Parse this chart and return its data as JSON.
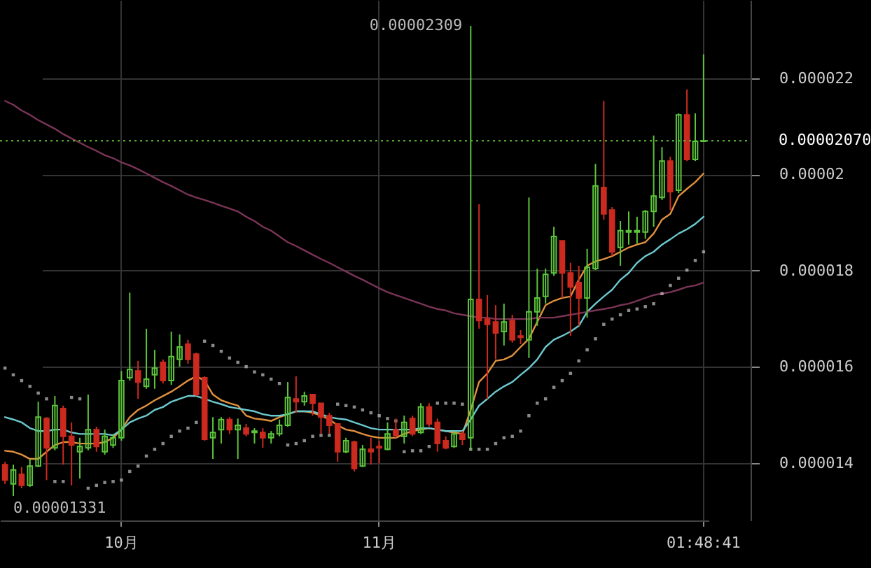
{
  "chart_data": {
    "type": "candlestick",
    "categories": [
      null,
      null,
      null,
      null,
      null,
      null,
      null,
      null,
      null,
      null,
      null,
      null,
      null,
      null,
      "10月",
      null,
      null,
      null,
      null,
      null,
      null,
      null,
      null,
      null,
      null,
      null,
      null,
      null,
      null,
      null,
      null,
      null,
      null,
      null,
      null,
      null,
      null,
      null,
      null,
      null,
      null,
      null,
      null,
      null,
      null,
      "11月",
      null,
      null,
      null,
      null,
      null,
      null,
      null,
      null,
      null,
      null,
      null,
      null,
      null,
      null,
      null,
      null,
      null,
      null,
      null,
      null,
      null,
      null,
      null,
      null,
      null,
      null,
      null,
      null,
      null,
      null,
      null,
      null,
      null,
      null,
      null,
      null,
      null,
      null,
      "01:48:41"
    ],
    "ohlc": [
      [
        1.396e-05,
        1.402e-05,
        1.356e-05,
        1.364e-05
      ],
      [
        1.356e-05,
        1.396e-05,
        1.331e-05,
        1.385e-05
      ],
      [
        1.376e-05,
        1.391e-05,
        1.347e-05,
        1.353e-05
      ],
      [
        1.353e-05,
        1.408e-05,
        1.35e-05,
        1.393e-05
      ],
      [
        1.393e-05,
        1.527e-05,
        1.391e-05,
        1.495e-05
      ],
      [
        1.492e-05,
        1.495e-05,
        1.364e-05,
        1.431e-05
      ],
      [
        1.431e-05,
        1.539e-05,
        1.426e-05,
        1.519e-05
      ],
      [
        1.513e-05,
        1.519e-05,
        1.396e-05,
        1.455e-05
      ],
      [
        1.455e-05,
        1.484e-05,
        1.353e-05,
        1.437e-05
      ],
      [
        1.423e-05,
        1.452e-05,
        1.367e-05,
        1.434e-05
      ],
      [
        1.431e-05,
        1.542e-05,
        1.426e-05,
        1.469e-05
      ],
      [
        1.469e-05,
        1.475e-05,
        1.423e-05,
        1.434e-05
      ],
      [
        1.423e-05,
        1.469e-05,
        1.417e-05,
        1.455e-05
      ],
      [
        1.437e-05,
        1.46e-05,
        1.431e-05,
        1.452e-05
      ],
      [
        1.452e-05,
        1.591e-05,
        1.446e-05,
        1.571e-05
      ],
      [
        1.577e-05,
        1.754e-05,
        1.571e-05,
        1.594e-05
      ],
      [
        1.591e-05,
        1.612e-05,
        1.533e-05,
        1.568e-05
      ],
      [
        1.559e-05,
        1.679e-05,
        1.554e-05,
        1.574e-05
      ],
      [
        1.583e-05,
        1.635e-05,
        1.554e-05,
        1.597e-05
      ],
      [
        1.609e-05,
        1.615e-05,
        1.565e-05,
        1.571e-05
      ],
      [
        1.571e-05,
        1.673e-05,
        1.562e-05,
        1.621e-05
      ],
      [
        1.615e-05,
        1.667e-05,
        1.6e-05,
        1.641e-05
      ],
      [
        1.647e-05,
        1.656e-05,
        1.606e-05,
        1.615e-05
      ],
      [
        1.626e-05,
        1.629e-05,
        1.539e-05,
        1.542e-05
      ],
      [
        1.577e-05,
        1.58e-05,
        1.446e-05,
        1.449e-05
      ],
      [
        1.452e-05,
        1.495e-05,
        1.408e-05,
        1.463e-05
      ],
      [
        1.469e-05,
        1.495e-05,
        1.44e-05,
        1.49e-05
      ],
      [
        1.49e-05,
        1.495e-05,
        1.46e-05,
        1.469e-05
      ],
      [
        1.469e-05,
        1.492e-05,
        1.408e-05,
        1.478e-05
      ],
      [
        1.472e-05,
        1.481e-05,
        1.455e-05,
        1.46e-05
      ],
      [
        1.463e-05,
        1.472e-05,
        1.44e-05,
        1.466e-05
      ],
      [
        1.463e-05,
        1.472e-05,
        1.431e-05,
        1.452e-05
      ],
      [
        1.452e-05,
        1.466e-05,
        1.44e-05,
        1.46e-05
      ],
      [
        1.46e-05,
        1.49e-05,
        1.455e-05,
        1.478e-05
      ],
      [
        1.478e-05,
        1.568e-05,
        1.475e-05,
        1.536e-05
      ],
      [
        1.533e-05,
        1.58e-05,
        1.504e-05,
        1.527e-05
      ],
      [
        1.527e-05,
        1.548e-05,
        1.519e-05,
        1.539e-05
      ],
      [
        1.542e-05,
        1.542e-05,
        1.498e-05,
        1.524e-05
      ],
      [
        1.524e-05,
        1.524e-05,
        1.46e-05,
        1.495e-05
      ],
      [
        1.498e-05,
        1.504e-05,
        1.46e-05,
        1.478e-05
      ],
      [
        1.481e-05,
        1.481e-05,
        1.402e-05,
        1.423e-05
      ],
      [
        1.423e-05,
        1.452e-05,
        1.42e-05,
        1.446e-05
      ],
      [
        1.443e-05,
        1.446e-05,
        1.382e-05,
        1.388e-05
      ],
      [
        1.393e-05,
        1.437e-05,
        1.391e-05,
        1.428e-05
      ],
      [
        1.428e-05,
        1.452e-05,
        1.396e-05,
        1.423e-05
      ],
      [
        1.434e-05,
        1.446e-05,
        1.399e-05,
        1.431e-05
      ],
      [
        1.428e-05,
        1.484e-05,
        1.426e-05,
        1.46e-05
      ],
      [
        1.469e-05,
        1.492e-05,
        1.452e-05,
        1.457e-05
      ],
      [
        1.455e-05,
        1.498e-05,
        1.44e-05,
        1.484e-05
      ],
      [
        1.492e-05,
        1.498e-05,
        1.455e-05,
        1.46e-05
      ],
      [
        1.463e-05,
        1.524e-05,
        1.46e-05,
        1.516e-05
      ],
      [
        1.516e-05,
        1.524e-05,
        1.475e-05,
        1.481e-05
      ],
      [
        1.484e-05,
        1.492e-05,
        1.423e-05,
        1.44e-05
      ],
      [
        1.446e-05,
        1.455e-05,
        1.428e-05,
        1.431e-05
      ],
      [
        1.434e-05,
        1.466e-05,
        1.431e-05,
        1.46e-05
      ],
      [
        1.46e-05,
        1.466e-05,
        1.437e-05,
        1.449e-05
      ],
      [
        1.452e-05,
        2.309e-05,
        1.426e-05,
        1.74e-05
      ],
      [
        1.74e-05,
        1.938e-05,
        1.679e-05,
        1.696e-05
      ],
      [
        1.699e-05,
        1.749e-05,
        1.533e-05,
        1.688e-05
      ],
      [
        1.693e-05,
        1.728e-05,
        1.615e-05,
        1.67e-05
      ],
      [
        1.673e-05,
        1.731e-05,
        1.644e-05,
        1.693e-05
      ],
      [
        1.696e-05,
        1.708e-05,
        1.65e-05,
        1.656e-05
      ],
      [
        1.664e-05,
        1.676e-05,
        1.647e-05,
        1.661e-05
      ],
      [
        1.656e-05,
        1.952e-05,
        1.618e-05,
        1.714e-05
      ],
      [
        1.714e-05,
        1.804e-05,
        1.685e-05,
        1.743e-05
      ],
      [
        1.746e-05,
        1.804e-05,
        1.731e-05,
        1.792e-05
      ],
      [
        1.795e-05,
        1.891e-05,
        1.789e-05,
        1.871e-05
      ],
      [
        1.862e-05,
        1.862e-05,
        1.743e-05,
        1.795e-05
      ],
      [
        1.795e-05,
        1.816e-05,
        1.664e-05,
        1.766e-05
      ],
      [
        1.775e-05,
        1.81e-05,
        1.685e-05,
        1.743e-05
      ],
      [
        1.743e-05,
        1.845e-05,
        1.702e-05,
        1.807e-05
      ],
      [
        1.804e-05,
        2.022e-05,
        1.801e-05,
        1.976e-05
      ],
      [
        1.973e-05,
        2.153e-05,
        1.906e-05,
        1.918e-05
      ],
      [
        1.926e-05,
        1.932e-05,
        1.83e-05,
        1.839e-05
      ],
      [
        1.848e-05,
        1.903e-05,
        1.81e-05,
        1.883e-05
      ],
      [
        1.88e-05,
        1.923e-05,
        1.854e-05,
        1.883e-05
      ],
      [
        1.88e-05,
        1.912e-05,
        1.856e-05,
        1.883e-05
      ],
      [
        1.88e-05,
        1.926e-05,
        1.866e-05,
        1.923e-05
      ],
      [
        1.923e-05,
        2.081e-05,
        1.891e-05,
        1.955e-05
      ],
      [
        1.952e-05,
        2.057e-05,
        1.947e-05,
        2.028e-05
      ],
      [
        2.028e-05,
        2.037e-05,
        1.926e-05,
        1.964e-05
      ],
      [
        1.967e-05,
        2.127e-05,
        1.961e-05,
        2.124e-05
      ],
      [
        2.124e-05,
        2.177e-05,
        2.028e-05,
        2.031e-05
      ],
      [
        2.031e-05,
        2.127e-05,
        2.028e-05,
        2.069e-05
      ],
      [
        2.069e-05,
        2.25e-05,
        2.069e-05,
        2.07e-05
      ]
    ],
    "colors": [
      "#cc2a1f",
      "#5cc43b",
      "#cc2a1f",
      "#5cc43b",
      "#5cc43b",
      "#cc2a1f",
      "#5cc43b",
      "#cc2a1f",
      "#cc2a1f",
      "#5cc43b",
      "#5cc43b",
      "#cc2a1f",
      "#5cc43b",
      "#5cc43b",
      "#5cc43b",
      "#5cc43b",
      "#cc2a1f",
      "#5cc43b",
      "#5cc43b",
      "#cc2a1f",
      "#5cc43b",
      "#5cc43b",
      "#cc2a1f",
      "#cc2a1f",
      "#cc2a1f",
      "#5cc43b",
      "#5cc43b",
      "#cc2a1f",
      "#5cc43b",
      "#cc2a1f",
      "#5cc43b",
      "#cc2a1f",
      "#5cc43b",
      "#5cc43b",
      "#5cc43b",
      "#cc2a1f",
      "#5cc43b",
      "#cc2a1f",
      "#cc2a1f",
      "#cc2a1f",
      "#cc2a1f",
      "#5cc43b",
      "#cc2a1f",
      "#5cc43b",
      "#cc2a1f",
      "#cc2a1f",
      "#5cc43b",
      "#cc2a1f",
      "#5cc43b",
      "#cc2a1f",
      "#5cc43b",
      "#cc2a1f",
      "#cc2a1f",
      "#cc2a1f",
      "#5cc43b",
      "#cc2a1f",
      "#5cc43b",
      "#cc2a1f",
      "#cc2a1f",
      "#cc2a1f",
      "#5cc43b",
      "#cc2a1f",
      "#cc2a1f",
      "#5cc43b",
      "#5cc43b",
      "#5cc43b",
      "#5cc43b",
      "#cc2a1f",
      "#cc2a1f",
      "#cc2a1f",
      "#5cc43b",
      "#5cc43b",
      "#cc2a1f",
      "#cc2a1f",
      "#5cc43b",
      "#5cc43b",
      "#5cc43b",
      "#5cc43b",
      "#5cc43b",
      "#5cc43b",
      "#cc2a1f",
      "#5cc43b",
      "#cc2a1f",
      "#5cc43b",
      "#5cc43b"
    ],
    "series": [
      {
        "type": "line",
        "color": "#e0913f",
        "values": [
          1.425e-05,
          1.423e-05,
          1.417e-05,
          1.408e-05,
          1.408e-05,
          1.423e-05,
          1.437e-05,
          1.443e-05,
          1.443e-05,
          1.44e-05,
          1.44e-05,
          1.44e-05,
          1.443e-05,
          1.452e-05,
          1.469e-05,
          1.495e-05,
          1.51e-05,
          1.519e-05,
          1.53e-05,
          1.539e-05,
          1.548e-05,
          1.559e-05,
          1.571e-05,
          1.58e-05,
          1.571e-05,
          1.542e-05,
          1.53e-05,
          1.524e-05,
          1.519e-05,
          1.498e-05,
          1.492e-05,
          1.49e-05,
          1.487e-05,
          1.495e-05,
          1.501e-05,
          1.507e-05,
          1.507e-05,
          1.504e-05,
          1.498e-05,
          1.49e-05,
          1.478e-05,
          1.469e-05,
          1.466e-05,
          1.46e-05,
          1.455e-05,
          1.452e-05,
          1.452e-05,
          1.452e-05,
          1.46e-05,
          1.466e-05,
          1.469e-05,
          1.472e-05,
          1.469e-05,
          1.466e-05,
          1.463e-05,
          1.46e-05,
          1.51e-05,
          1.568e-05,
          1.586e-05,
          1.612e-05,
          1.615e-05,
          1.623e-05,
          1.641e-05,
          1.658e-05,
          1.693e-05,
          1.728e-05,
          1.737e-05,
          1.743e-05,
          1.746e-05,
          1.781e-05,
          1.81e-05,
          1.819e-05,
          1.824e-05,
          1.83e-05,
          1.839e-05,
          1.848e-05,
          1.854e-05,
          1.859e-05,
          1.877e-05,
          1.906e-05,
          1.918e-05,
          1.955e-05,
          1.97e-05,
          1.984e-05,
          2.002e-05
        ]
      },
      {
        "type": "line",
        "color": "#6cc9cf",
        "values": [
          1.495e-05,
          1.49e-05,
          1.484e-05,
          1.472e-05,
          1.466e-05,
          1.466e-05,
          1.469e-05,
          1.469e-05,
          1.463e-05,
          1.46e-05,
          1.46e-05,
          1.46e-05,
          1.46e-05,
          1.457e-05,
          1.469e-05,
          1.484e-05,
          1.492e-05,
          1.498e-05,
          1.51e-05,
          1.516e-05,
          1.527e-05,
          1.533e-05,
          1.539e-05,
          1.539e-05,
          1.533e-05,
          1.527e-05,
          1.522e-05,
          1.516e-05,
          1.513e-05,
          1.51e-05,
          1.507e-05,
          1.501e-05,
          1.498e-05,
          1.498e-05,
          1.501e-05,
          1.507e-05,
          1.507e-05,
          1.507e-05,
          1.501e-05,
          1.495e-05,
          1.492e-05,
          1.49e-05,
          1.484e-05,
          1.478e-05,
          1.472e-05,
          1.469e-05,
          1.469e-05,
          1.469e-05,
          1.469e-05,
          1.469e-05,
          1.472e-05,
          1.472e-05,
          1.469e-05,
          1.466e-05,
          1.466e-05,
          1.466e-05,
          1.49e-05,
          1.519e-05,
          1.533e-05,
          1.548e-05,
          1.559e-05,
          1.568e-05,
          1.583e-05,
          1.597e-05,
          1.615e-05,
          1.641e-05,
          1.656e-05,
          1.664e-05,
          1.673e-05,
          1.685e-05,
          1.714e-05,
          1.731e-05,
          1.746e-05,
          1.76e-05,
          1.781e-05,
          1.795e-05,
          1.816e-05,
          1.83e-05,
          1.839e-05,
          1.854e-05,
          1.865e-05,
          1.877e-05,
          1.886e-05,
          1.897e-05,
          1.912e-05
        ]
      },
      {
        "type": "line",
        "color": "#7a3456",
        "values": [
          2.153e-05,
          2.145e-05,
          2.133e-05,
          2.124e-05,
          2.113e-05,
          2.104e-05,
          2.095e-05,
          2.084e-05,
          2.075e-05,
          2.066e-05,
          2.057e-05,
          2.049e-05,
          2.04e-05,
          2.034e-05,
          2.025e-05,
          2.019e-05,
          2.011e-05,
          2.002e-05,
          1.993e-05,
          1.984e-05,
          1.976e-05,
          1.967e-05,
          1.958e-05,
          1.952e-05,
          1.947e-05,
          1.941e-05,
          1.935e-05,
          1.929e-05,
          1.923e-05,
          1.912e-05,
          1.903e-05,
          1.891e-05,
          1.883e-05,
          1.871e-05,
          1.859e-05,
          1.851e-05,
          1.842e-05,
          1.833e-05,
          1.824e-05,
          1.816e-05,
          1.807e-05,
          1.798e-05,
          1.789e-05,
          1.781e-05,
          1.772e-05,
          1.763e-05,
          1.755e-05,
          1.749e-05,
          1.743e-05,
          1.737e-05,
          1.731e-05,
          1.725e-05,
          1.72e-05,
          1.717e-05,
          1.711e-05,
          1.708e-05,
          1.705e-05,
          1.702e-05,
          1.702e-05,
          1.699e-05,
          1.699e-05,
          1.699e-05,
          1.699e-05,
          1.699e-05,
          1.702e-05,
          1.702e-05,
          1.702e-05,
          1.705e-05,
          1.708e-05,
          1.711e-05,
          1.714e-05,
          1.717e-05,
          1.72e-05,
          1.723e-05,
          1.728e-05,
          1.731e-05,
          1.737e-05,
          1.743e-05,
          1.749e-05,
          1.752e-05,
          1.755e-05,
          1.76e-05,
          1.766e-05,
          1.769e-05,
          1.775e-05
        ]
      },
      {
        "type": "scatter",
        "color": "#c4c4c4",
        "marker": "square",
        "values": [
          1.597e-05,
          1.583e-05,
          1.571e-05,
          1.559e-05,
          1.545e-05,
          1.533e-05,
          1.361e-05,
          1.361e-05,
          1.536e-05,
          1.533e-05,
          1.347e-05,
          1.353e-05,
          1.359e-05,
          1.361e-05,
          1.364e-05,
          1.382e-05,
          1.393e-05,
          1.414e-05,
          1.428e-05,
          1.44e-05,
          1.455e-05,
          1.466e-05,
          1.472e-05,
          1.484e-05,
          1.653e-05,
          1.644e-05,
          1.632e-05,
          1.618e-05,
          1.609e-05,
          1.6e-05,
          1.589e-05,
          1.583e-05,
          1.574e-05,
          1.565e-05,
          1.437e-05,
          1.44e-05,
          1.446e-05,
          1.455e-05,
          1.457e-05,
          1.457e-05,
          1.522e-05,
          1.519e-05,
          1.516e-05,
          1.51e-05,
          1.504e-05,
          1.498e-05,
          1.492e-05,
          1.487e-05,
          1.423e-05,
          1.425e-05,
          1.425e-05,
          1.434e-05,
          1.524e-05,
          1.524e-05,
          1.524e-05,
          1.522e-05,
          1.428e-05,
          1.428e-05,
          1.428e-05,
          1.44e-05,
          1.452e-05,
          1.455e-05,
          1.466e-05,
          1.498e-05,
          1.524e-05,
          1.533e-05,
          1.557e-05,
          1.571e-05,
          1.586e-05,
          1.612e-05,
          1.635e-05,
          1.658e-05,
          1.688e-05,
          1.699e-05,
          1.708e-05,
          1.717e-05,
          1.72e-05,
          1.725e-05,
          1.731e-05,
          1.752e-05,
          1.769e-05,
          1.784e-05,
          1.801e-05,
          1.821e-05,
          1.839e-05
        ]
      }
    ],
    "ylim": [
      1.28e-05,
      2.363e-05
    ],
    "yticks": [
      {
        "value": 1.4e-05,
        "label": "0.000014"
      },
      {
        "value": 1.6e-05,
        "label": "0.000016"
      },
      {
        "value": 1.8e-05,
        "label": "0.000018"
      },
      {
        "value": 2e-05,
        "label": "0.00002"
      },
      {
        "value": 2.2e-05,
        "label": "0.000022"
      }
    ],
    "grid": true,
    "ref_lines": [
      {
        "axis": "y",
        "value": 2.07e-05,
        "label": "0.00002070",
        "color": "#5cc43b",
        "line_style": "dotted"
      }
    ],
    "annotations": [
      "0.00002309",
      "0.00001331"
    ]
  }
}
